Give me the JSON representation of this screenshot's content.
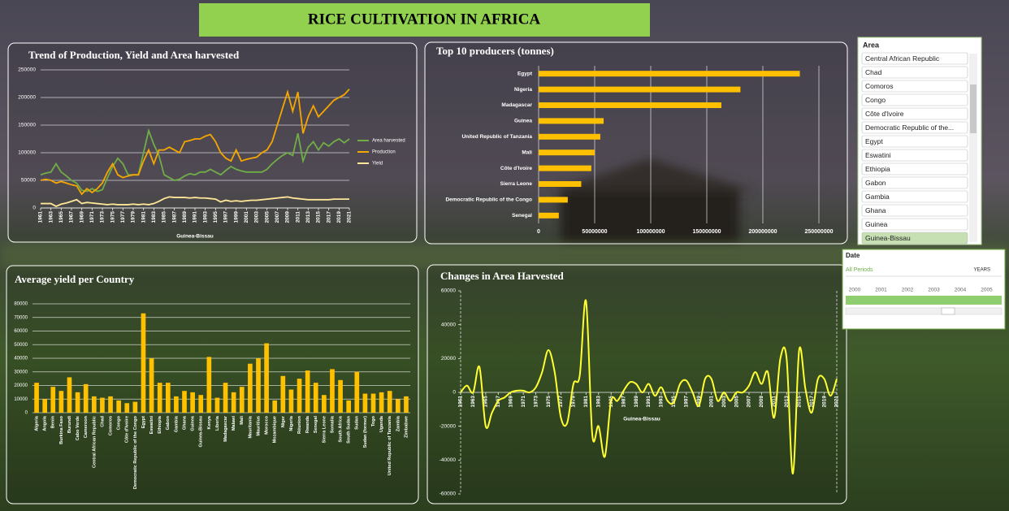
{
  "title": "RICE CULTIVATION IN AFRICA",
  "chart_data": [
    {
      "type": "line",
      "title": "Trend of Production, Yield and Area harvested",
      "x_label": "Guinea-Bissau",
      "x": [
        1961,
        1962,
        1963,
        1964,
        1965,
        1966,
        1967,
        1968,
        1969,
        1970,
        1971,
        1972,
        1973,
        1974,
        1975,
        1976,
        1977,
        1978,
        1979,
        1980,
        1981,
        1982,
        1983,
        1984,
        1985,
        1986,
        1987,
        1988,
        1989,
        1990,
        1991,
        1992,
        1993,
        1994,
        1995,
        1996,
        1997,
        1998,
        1999,
        2000,
        2001,
        2002,
        2003,
        2004,
        2005,
        2006,
        2007,
        2008,
        2009,
        2010,
        2011,
        2012,
        2013,
        2014,
        2015,
        2016,
        2017,
        2018,
        2019,
        2020,
        2021
      ],
      "xlim": [
        1961,
        2021
      ],
      "xticks": [
        1961,
        1963,
        1965,
        1967,
        1969,
        1971,
        1973,
        1975,
        1977,
        1979,
        1981,
        1983,
        1985,
        1987,
        1989,
        1991,
        1993,
        1995,
        1997,
        1999,
        2001,
        2003,
        2005,
        2007,
        2009,
        2011,
        2013,
        2015,
        2017,
        2019,
        2021
      ],
      "ylim": [
        0,
        250000
      ],
      "yticks": [
        0,
        50000,
        100000,
        150000,
        200000,
        250000
      ],
      "grid": true,
      "legend": "right",
      "series": [
        {
          "name": "Area harvested",
          "color": "#70ad47",
          "values": [
            60000,
            63000,
            65000,
            80000,
            65000,
            58000,
            50000,
            45000,
            32000,
            30000,
            35000,
            30000,
            33000,
            55000,
            75000,
            90000,
            80000,
            60000,
            60000,
            60000,
            100000,
            140000,
            115000,
            95000,
            60000,
            55000,
            50000,
            52000,
            58000,
            62000,
            60000,
            65000,
            65000,
            70000,
            65000,
            60000,
            68000,
            75000,
            70000,
            67000,
            65000,
            65000,
            65000,
            65000,
            70000,
            80000,
            88000,
            95000,
            100000,
            95000,
            135000,
            85000,
            110000,
            120000,
            105000,
            118000,
            112000,
            120000,
            125000,
            118000,
            125000
          ]
        },
        {
          "name": "Production",
          "color": "#f5a700",
          "values": [
            50000,
            52000,
            50000,
            45000,
            48000,
            45000,
            42000,
            40000,
            25000,
            35000,
            28000,
            35000,
            45000,
            65000,
            80000,
            60000,
            55000,
            58000,
            60000,
            60000,
            85000,
            105000,
            80000,
            105000,
            105000,
            110000,
            105000,
            100000,
            120000,
            122000,
            125000,
            125000,
            130000,
            133000,
            120000,
            100000,
            90000,
            85000,
            105000,
            85000,
            88000,
            90000,
            92000,
            100000,
            105000,
            120000,
            150000,
            180000,
            210000,
            175000,
            210000,
            135000,
            165000,
            185000,
            165000,
            175000,
            185000,
            195000,
            200000,
            205000,
            215000
          ]
        },
        {
          "name": "Yield",
          "color": "#ffe699",
          "values": [
            8000,
            8000,
            8000,
            3000,
            7000,
            9000,
            12000,
            15000,
            8000,
            10000,
            9000,
            8000,
            7000,
            6000,
            7000,
            6000,
            6000,
            6000,
            7000,
            6000,
            7000,
            6000,
            8000,
            12000,
            17000,
            20000,
            19000,
            19000,
            19000,
            18000,
            19000,
            18000,
            18000,
            17000,
            16000,
            11000,
            14000,
            12000,
            13000,
            12000,
            13000,
            14000,
            14000,
            15000,
            16000,
            17000,
            18000,
            19000,
            20000,
            18000,
            17000,
            16000,
            15000,
            15000,
            15000,
            15000,
            15000,
            16000,
            16000,
            16000,
            16000
          ]
        }
      ]
    },
    {
      "type": "bar",
      "orientation": "horizontal",
      "title": "Top 10 producers (tonnes)",
      "color": "#ffc000",
      "categories": [
        "Egypt",
        "Nigeria",
        "Madagascar",
        "Guinea",
        "United Republic of Tanzania",
        "Mali",
        "Côte d'Ivoire",
        "Sierra Leone",
        "Democratic Republic of the Congo",
        "Senegal"
      ],
      "values": [
        233000000,
        180000000,
        163000000,
        58000000,
        55000000,
        50000000,
        47000000,
        38000000,
        26000000,
        18000000
      ],
      "xlim": [
        0,
        250000000
      ],
      "xticks": [
        0,
        50000000,
        100000000,
        150000000,
        200000000,
        250000000
      ],
      "grid": true
    },
    {
      "type": "bar",
      "title": "Average yield per Country",
      "color": "#ffc000",
      "categories": [
        "Algeria",
        "Angola",
        "Benin",
        "Burkina Faso",
        "Burundi",
        "Cabo Verde",
        "Cameroon",
        "Central African Republic",
        "Chad",
        "Comoros",
        "Congo",
        "Côte d'Ivoire",
        "Democratic Republic of the Congo",
        "Egypt",
        "Eswatini",
        "Ethiopia",
        "Gabon",
        "Gambia",
        "Ghana",
        "Guinea",
        "Guinea-Bissau",
        "Kenya",
        "Liberia",
        "Madagascar",
        "Malawi",
        "Mali",
        "Mauritania",
        "Mauritius",
        "Morocco",
        "Mozambique",
        "Niger",
        "Nigeria",
        "Réunion",
        "Rwanda",
        "Senegal",
        "Sierra Leone",
        "Somalia",
        "South Africa",
        "South Sudan",
        "Sudan",
        "Sudan (former)",
        "Togo",
        "Uganda",
        "United Republic of Tanzania",
        "Zambia",
        "Zimbabwe"
      ],
      "values": [
        22000,
        10000,
        19000,
        16000,
        26000,
        15000,
        21000,
        12000,
        11000,
        12000,
        9000,
        7000,
        8000,
        73000,
        40000,
        22000,
        22000,
        12000,
        16000,
        15000,
        13000,
        41000,
        11000,
        22000,
        15000,
        19000,
        36000,
        40000,
        51000,
        9000,
        27000,
        17000,
        25000,
        31000,
        22000,
        13000,
        32000,
        24000,
        9000,
        30000,
        14000,
        14000,
        15000,
        16000,
        10000,
        12000
      ],
      "ylim": [
        0,
        80000
      ],
      "yticks": [
        0,
        10000,
        20000,
        30000,
        40000,
        50000,
        60000,
        70000,
        80000
      ],
      "grid": true
    },
    {
      "type": "line",
      "smooth": true,
      "title": "Changes in Area Harvested",
      "x_label": "Guinea-Bissau",
      "x": [
        1961,
        1962,
        1963,
        1964,
        1965,
        1966,
        1967,
        1968,
        1969,
        1970,
        1971,
        1972,
        1973,
        1974,
        1975,
        1976,
        1977,
        1978,
        1979,
        1980,
        1981,
        1982,
        1983,
        1984,
        1985,
        1986,
        1987,
        1988,
        1989,
        1990,
        1991,
        1992,
        1993,
        1994,
        1995,
        1996,
        1997,
        1998,
        1999,
        2000,
        2001,
        2002,
        2003,
        2004,
        2005,
        2006,
        2007,
        2008,
        2009,
        2010,
        2011,
        2012,
        2013,
        2014,
        2015,
        2016,
        2017,
        2018,
        2019,
        2020,
        2021
      ],
      "xlim": [
        1961,
        2021
      ],
      "xticks": [
        1961,
        1963,
        1965,
        1967,
        1969,
        1971,
        1973,
        1975,
        1977,
        1979,
        1981,
        1983,
        1985,
        1987,
        1989,
        1991,
        1993,
        1995,
        1997,
        1999,
        2001,
        2003,
        2005,
        2007,
        2009,
        2011,
        2013,
        2015,
        2017,
        2019,
        2021
      ],
      "ylim": [
        -60000,
        60000
      ],
      "yticks": [
        -60000,
        -40000,
        -20000,
        0,
        20000,
        40000,
        60000
      ],
      "grid": false,
      "series": [
        {
          "name": "Guinea-Bissau",
          "color": "#ffff33",
          "values": [
            0,
            4000,
            0,
            15000,
            -20000,
            -12000,
            -5000,
            -3000,
            0,
            1000,
            1000,
            0,
            3000,
            12000,
            25000,
            12000,
            -15000,
            -18000,
            5000,
            10000,
            54000,
            -25000,
            -20000,
            -38000,
            -5000,
            -5000,
            1000,
            6000,
            5000,
            0,
            5000,
            -2000,
            3000,
            -5000,
            -6000,
            5000,
            7000,
            0,
            -8000,
            8000,
            8000,
            -5000,
            0,
            -5000,
            0,
            0,
            4000,
            12000,
            5000,
            12000,
            -15000,
            20000,
            20000,
            -48000,
            25000,
            2000,
            -12000,
            8000,
            8000,
            -2000,
            8000
          ]
        }
      ]
    }
  ],
  "area_slicer": {
    "title": "Area",
    "items": [
      "Central African Republic",
      "Chad",
      "Comoros",
      "Congo",
      "Côte d'Ivoire",
      "Democratic Republic of the...",
      "Egypt",
      "Eswatini",
      "Ethiopia",
      "Gabon",
      "Gambia",
      "Ghana",
      "Guinea",
      "Guinea-Bissau"
    ],
    "selected_index": 13
  },
  "date_slicer": {
    "title": "Date",
    "period": "All Periods",
    "unit": "YEARS",
    "years": [
      2000,
      2001,
      2002,
      2003,
      2004,
      2005
    ]
  }
}
